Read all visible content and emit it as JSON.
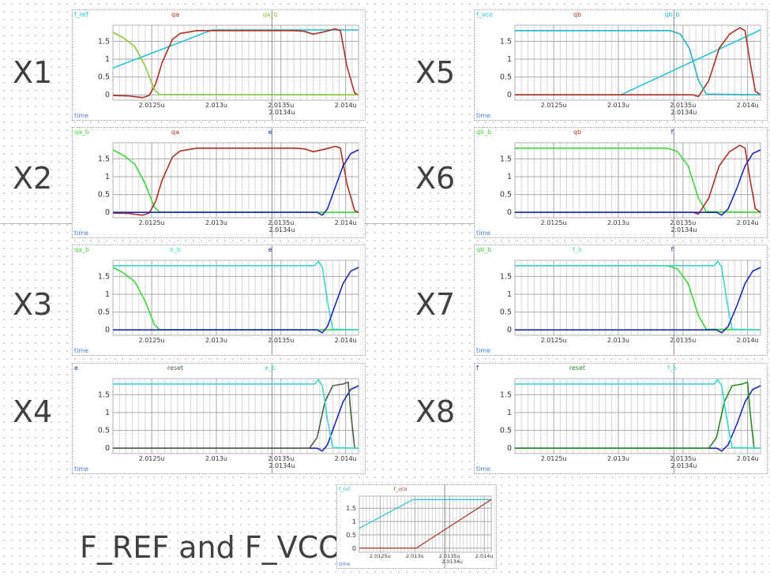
{
  "labels": {
    "X1": "X1",
    "X2": "X2",
    "X3": "X3",
    "X4": "X4",
    "X5": "X5",
    "X6": "X6",
    "X7": "X7",
    "X8": "X8",
    "bottom": "F_REF and F_VCO"
  },
  "chart_data": [
    {
      "id": "X1",
      "type": "line",
      "xlabel": "time",
      "xlim": [
        2.0122,
        2.0141
      ],
      "ylim": [
        -0.15,
        1.95
      ],
      "yticks": [
        "0",
        "0.5",
        "1",
        "1.5"
      ],
      "xticks": [
        "2.0125u",
        "2.013u",
        "2.0135u",
        "2.014u"
      ],
      "cursor_label": "2.0134u",
      "series": [
        {
          "name": "f_ref",
          "color": "#22c4d8",
          "x": [
            2.0122,
            2.01297,
            2.0141
          ],
          "y": [
            0.75,
            1.82,
            1.82
          ]
        },
        {
          "name": "qa",
          "color": "#b03020",
          "x": [
            2.0122,
            2.01232,
            2.01243,
            2.01248,
            2.01253,
            2.01258,
            2.01266,
            2.01272,
            2.01285,
            2.0136,
            2.01368,
            2.01375,
            2.01385,
            2.01392,
            2.01396,
            2.01401,
            2.01407,
            2.0141
          ],
          "y": [
            -0.02,
            -0.03,
            -0.08,
            -0.02,
            0.3,
            0.9,
            1.55,
            1.72,
            1.8,
            1.8,
            1.78,
            1.7,
            1.78,
            1.85,
            1.8,
            0.8,
            0.05,
            0
          ]
        },
        {
          "name": "qa_b",
          "color": "#8cc83a",
          "x": [
            2.0122,
            2.01228,
            2.01237,
            2.01245,
            2.01252,
            2.01256,
            2.0141
          ],
          "y": [
            1.75,
            1.6,
            1.35,
            0.8,
            0.15,
            0.01,
            0
          ]
        }
      ]
    },
    {
      "id": "X2",
      "type": "line",
      "xlabel": "time",
      "xlim": [
        2.0122,
        2.0141
      ],
      "ylim": [
        -0.15,
        1.95
      ],
      "yticks": [
        "0",
        "0.5",
        "1",
        "1.5"
      ],
      "xticks": [
        "2.0125u",
        "2.013u",
        "2.0135u",
        "2.014u"
      ],
      "cursor_label": "2.0134u",
      "series": [
        {
          "name": "qa_b",
          "color": "#38d838",
          "x": [
            2.0122,
            2.01228,
            2.01237,
            2.01245,
            2.01252,
            2.01256,
            2.0141
          ],
          "y": [
            1.75,
            1.6,
            1.35,
            0.8,
            0.15,
            0.01,
            0
          ]
        },
        {
          "name": "qa",
          "color": "#b03020",
          "x": [
            2.0122,
            2.01232,
            2.01243,
            2.01248,
            2.01253,
            2.01258,
            2.01266,
            2.01272,
            2.01285,
            2.0136,
            2.01368,
            2.01375,
            2.01385,
            2.01392,
            2.01396,
            2.01401,
            2.01407,
            2.0141
          ],
          "y": [
            -0.02,
            -0.03,
            -0.08,
            -0.02,
            0.3,
            0.9,
            1.55,
            1.72,
            1.8,
            1.8,
            1.78,
            1.7,
            1.78,
            1.85,
            1.8,
            0.8,
            0.05,
            0
          ]
        },
        {
          "name": "e",
          "color": "#1a2ab8",
          "x": [
            2.0122,
            2.01378,
            2.01382,
            2.01386,
            2.01392,
            2.01398,
            2.01404,
            2.0141
          ],
          "y": [
            0,
            0,
            -0.08,
            0.1,
            0.7,
            1.3,
            1.65,
            1.75
          ]
        }
      ]
    },
    {
      "id": "X3",
      "type": "line",
      "xlabel": "time",
      "xlim": [
        2.0122,
        2.0141
      ],
      "ylim": [
        -0.15,
        1.95
      ],
      "yticks": [
        "0",
        "0.5",
        "1",
        "1.5"
      ],
      "xticks": [
        "2.0125u",
        "2.013u",
        "2.0135u",
        "2.014u"
      ],
      "cursor_label": "",
      "series": [
        {
          "name": "qa_b",
          "color": "#38d838",
          "x": [
            2.0122,
            2.01228,
            2.01237,
            2.01245,
            2.01252,
            2.01256,
            2.0141
          ],
          "y": [
            1.75,
            1.6,
            1.35,
            0.8,
            0.15,
            0.01,
            0
          ]
        },
        {
          "name": "e_b",
          "color": "#38d8cc",
          "x": [
            2.0122,
            2.01376,
            2.01379,
            2.01382,
            2.01386,
            2.0139,
            2.0141
          ],
          "y": [
            1.8,
            1.8,
            1.92,
            1.75,
            0.8,
            0.02,
            0
          ]
        },
        {
          "name": "e",
          "color": "#1a2ab8",
          "x": [
            2.0122,
            2.01378,
            2.01382,
            2.01386,
            2.01392,
            2.01398,
            2.01404,
            2.0141
          ],
          "y": [
            0,
            0,
            -0.08,
            0.1,
            0.7,
            1.3,
            1.65,
            1.75
          ]
        }
      ]
    },
    {
      "id": "X4",
      "type": "line",
      "xlabel": "time",
      "xlim": [
        2.0122,
        2.0141
      ],
      "ylim": [
        -0.15,
        1.95
      ],
      "yticks": [
        "0",
        "0.5",
        "1",
        "1.5"
      ],
      "xticks": [
        "2.0125u",
        "2.013u",
        "2.0135u",
        "2.014u"
      ],
      "cursor_label": "2.0134u",
      "series": [
        {
          "name": "e",
          "color": "#1a2ab8",
          "x": [
            2.0122,
            2.01378,
            2.01382,
            2.01386,
            2.01392,
            2.01398,
            2.01404,
            2.0141
          ],
          "y": [
            0,
            0,
            -0.08,
            0.1,
            0.7,
            1.3,
            1.65,
            1.75
          ]
        },
        {
          "name": "reset",
          "color": "#4a6048",
          "x": [
            2.0122,
            2.01372,
            2.01378,
            2.01384,
            2.0139,
            2.01398,
            2.01402,
            2.01404,
            2.01407,
            2.0141
          ],
          "y": [
            0,
            0,
            0.3,
            1.3,
            1.75,
            1.8,
            1.85,
            1.0,
            0,
            0
          ]
        },
        {
          "name": "e_b",
          "color": "#38d8cc",
          "x": [
            2.0122,
            2.01376,
            2.01379,
            2.01382,
            2.01386,
            2.0139,
            2.0141
          ],
          "y": [
            1.8,
            1.8,
            1.92,
            1.75,
            0.8,
            0.02,
            0
          ]
        }
      ]
    },
    {
      "id": "X5",
      "type": "line",
      "xlabel": "time",
      "xlim": [
        2.0122,
        2.0141
      ],
      "ylim": [
        -0.15,
        1.95
      ],
      "yticks": [
        "0",
        "0.5",
        "1",
        "1.5"
      ],
      "xticks": [
        "2.0125u",
        "2.013u",
        "2.0135u",
        "2.014u"
      ],
      "cursor_label": "2.0134u",
      "series": [
        {
          "name": "f_vco",
          "color": "#22c4d8",
          "x": [
            2.0122,
            2.01302,
            2.0141
          ],
          "y": [
            0,
            0,
            1.82
          ]
        },
        {
          "name": "qb",
          "color": "#b03020",
          "x": [
            2.0122,
            2.01358,
            2.01362,
            2.0137,
            2.01378,
            2.01386,
            2.01394,
            2.01398,
            2.01402,
            2.01406,
            2.0141
          ],
          "y": [
            0,
            0,
            -0.05,
            0.4,
            1.3,
            1.7,
            1.88,
            1.8,
            0.9,
            0.1,
            0
          ]
        },
        {
          "name": "qb_b",
          "color": "#22b4c8",
          "x": [
            2.0122,
            2.0134,
            2.01348,
            2.01355,
            2.01362,
            2.01368,
            2.0141
          ],
          "y": [
            1.8,
            1.8,
            1.7,
            1.3,
            0.4,
            0.02,
            0
          ]
        }
      ]
    },
    {
      "id": "X6",
      "type": "line",
      "xlabel": "time",
      "xlim": [
        2.0122,
        2.0141
      ],
      "ylim": [
        -0.15,
        1.95
      ],
      "yticks": [
        "0",
        "0.5",
        "1",
        "1.5"
      ],
      "xticks": [
        "2.0125u",
        "2.013u",
        "2.0135u",
        "2.014u"
      ],
      "cursor_label": "2.0134u",
      "series": [
        {
          "name": "qb_b",
          "color": "#38d838",
          "x": [
            2.0122,
            2.01338,
            2.01346,
            2.01354,
            2.01362,
            2.01368,
            2.0141
          ],
          "y": [
            1.8,
            1.8,
            1.7,
            1.3,
            0.4,
            0.02,
            0
          ]
        },
        {
          "name": "qb",
          "color": "#b03020",
          "x": [
            2.0122,
            2.01358,
            2.01362,
            2.0137,
            2.01378,
            2.01386,
            2.01394,
            2.01398,
            2.01402,
            2.01406,
            2.0141
          ],
          "y": [
            0,
            0,
            -0.05,
            0.4,
            1.3,
            1.7,
            1.88,
            1.8,
            0.9,
            0.1,
            0
          ]
        },
        {
          "name": "f",
          "color": "#1a2ab8",
          "x": [
            2.0122,
            2.01376,
            2.0138,
            2.01385,
            2.01392,
            2.01398,
            2.01404,
            2.0141
          ],
          "y": [
            0,
            0,
            -0.08,
            0.1,
            0.7,
            1.3,
            1.65,
            1.75
          ]
        }
      ]
    },
    {
      "id": "X7",
      "type": "line",
      "xlabel": "time",
      "xlim": [
        2.0122,
        2.0141
      ],
      "ylim": [
        -0.15,
        1.95
      ],
      "yticks": [
        "0",
        "0.5",
        "1",
        "1.5"
      ],
      "xticks": [
        "2.0125u",
        "2.013u",
        "2.0135u",
        "2.014u"
      ],
      "cursor_label": "",
      "series": [
        {
          "name": "qb_b",
          "color": "#38d838",
          "x": [
            2.0122,
            2.01338,
            2.01346,
            2.01354,
            2.01362,
            2.01368,
            2.0141
          ],
          "y": [
            1.8,
            1.8,
            1.7,
            1.3,
            0.4,
            0.02,
            0
          ]
        },
        {
          "name": "f_b",
          "color": "#38d8cc",
          "x": [
            2.0122,
            2.01374,
            2.01377,
            2.0138,
            2.01384,
            2.01388,
            2.0141
          ],
          "y": [
            1.8,
            1.8,
            1.92,
            1.75,
            0.8,
            0.02,
            0
          ]
        },
        {
          "name": "f",
          "color": "#1a2ab8",
          "x": [
            2.0122,
            2.01376,
            2.0138,
            2.01385,
            2.01392,
            2.01398,
            2.01404,
            2.0141
          ],
          "y": [
            0,
            0,
            -0.08,
            0.1,
            0.7,
            1.3,
            1.65,
            1.75
          ]
        }
      ]
    },
    {
      "id": "X8",
      "type": "line",
      "xlabel": "time",
      "xlim": [
        2.0122,
        2.0141
      ],
      "ylim": [
        -0.15,
        1.95
      ],
      "yticks": [
        "0",
        "0.5",
        "1",
        "1.5"
      ],
      "xticks": [
        "2.0125u",
        "2.013u",
        "2.0135u",
        "2.014u"
      ],
      "cursor_label": "2.0134u",
      "series": [
        {
          "name": "f",
          "color": "#1a2ab8",
          "x": [
            2.0122,
            2.01376,
            2.0138,
            2.01385,
            2.01392,
            2.01398,
            2.01404,
            2.0141
          ],
          "y": [
            0,
            0,
            -0.08,
            0.1,
            0.7,
            1.3,
            1.65,
            1.75
          ]
        },
        {
          "name": "reset",
          "color": "#2a8a28",
          "x": [
            2.0122,
            2.0137,
            2.01376,
            2.01382,
            2.01388,
            2.01396,
            2.014,
            2.01402,
            2.01405,
            2.0141
          ],
          "y": [
            0,
            0,
            0.3,
            1.3,
            1.75,
            1.8,
            1.85,
            1.0,
            0,
            0
          ]
        },
        {
          "name": "f_b",
          "color": "#38d8cc",
          "x": [
            2.0122,
            2.01374,
            2.01377,
            2.0138,
            2.01384,
            2.01388,
            2.0141
          ],
          "y": [
            1.8,
            1.8,
            1.92,
            1.75,
            0.8,
            0.02,
            0
          ]
        }
      ]
    },
    {
      "id": "F",
      "type": "line",
      "xlabel": "time",
      "xlim": [
        2.0122,
        2.0141
      ],
      "ylim": [
        -0.15,
        1.95
      ],
      "yticks": [
        "0",
        "0.5",
        "1",
        "1.5"
      ],
      "xticks": [
        "2.0125u",
        "2.013u",
        "2.0135u",
        "2.014u"
      ],
      "cursor_label": "2.0134u",
      "series": [
        {
          "name": "f_ref",
          "color": "#22c4d8",
          "x": [
            2.0122,
            2.01297,
            2.0141
          ],
          "y": [
            0.75,
            1.82,
            1.82
          ]
        },
        {
          "name": "f_vco",
          "color": "#b03020",
          "x": [
            2.0122,
            2.01302,
            2.0141
          ],
          "y": [
            0,
            0,
            1.82
          ]
        }
      ]
    }
  ]
}
